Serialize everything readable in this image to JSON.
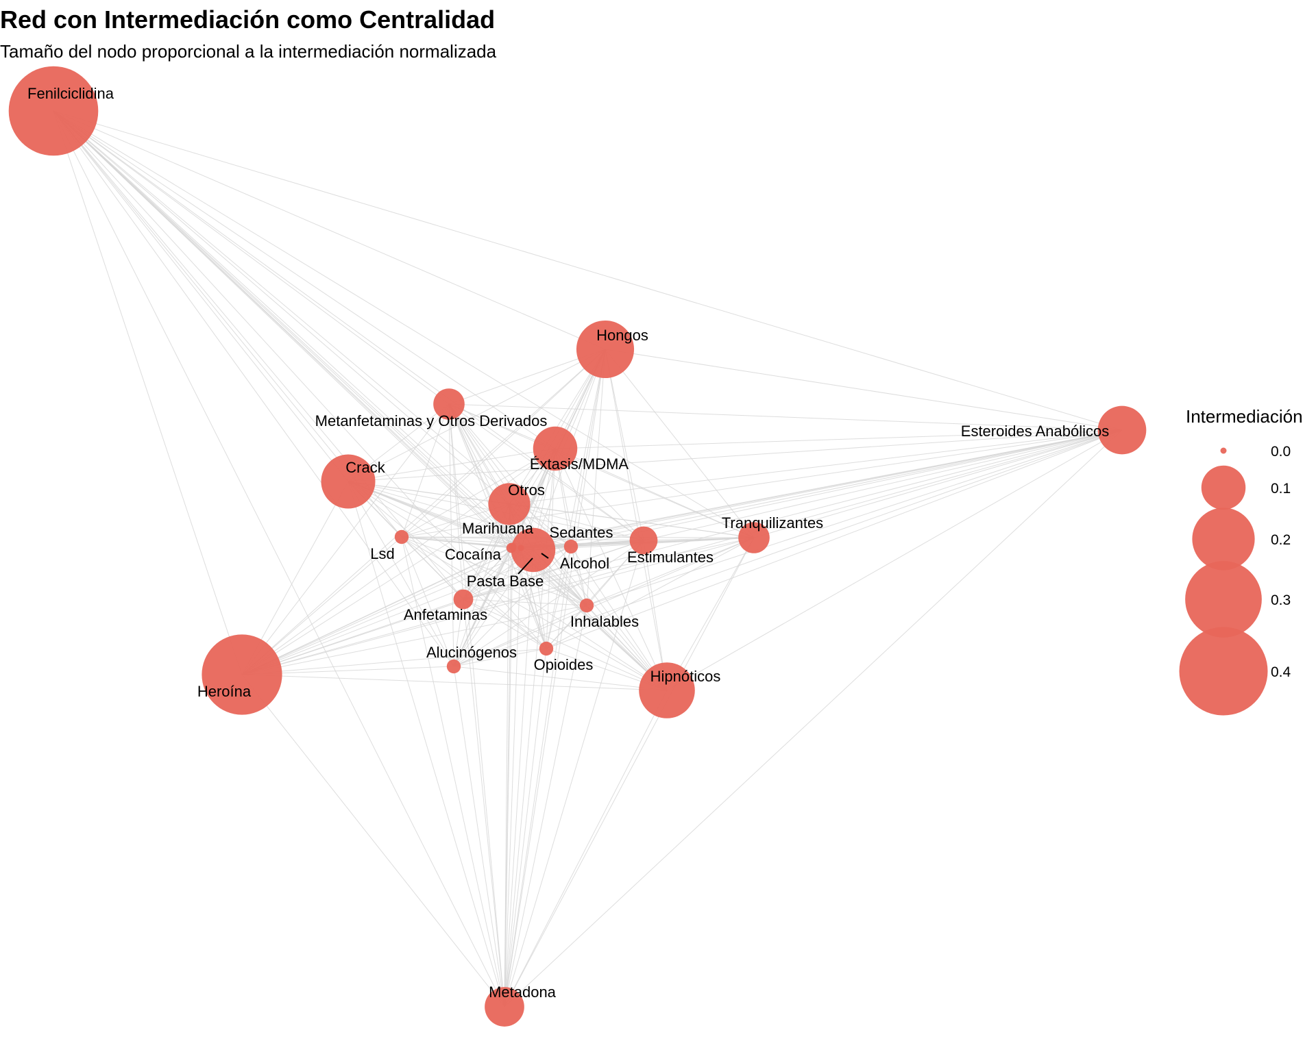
{
  "title": "Red con Intermediación como Centralidad",
  "subtitle": "Tamaño del nodo proporcional a la intermediación normalizada",
  "legend": {
    "title": "Intermediación",
    "entries": [
      {
        "label": "0.0",
        "value": 0.0
      },
      {
        "label": "0.1",
        "value": 0.1
      },
      {
        "label": "0.2",
        "value": 0.2
      },
      {
        "label": "0.3",
        "value": 0.3
      },
      {
        "label": "0.4",
        "value": 0.4
      }
    ]
  },
  "colors": {
    "node": "#e8665a",
    "edge": "#d4d4d4"
  },
  "nodes": [
    {
      "id": "Fenilciclidina",
      "label": "Fenilciclidina",
      "betweenness": 0.41
    },
    {
      "id": "Hongos",
      "label": "Hongos",
      "betweenness": 0.17
    },
    {
      "id": "Metanfetaminas",
      "label": "Metanfetaminas y Otros Derivados",
      "betweenness": 0.05
    },
    {
      "id": "Esteroides",
      "label": "Esteroides Anabólicos",
      "betweenness": 0.12
    },
    {
      "id": "Extasis",
      "label": "Éxtasis/MDMA",
      "betweenness": 0.1
    },
    {
      "id": "Crack",
      "label": "Crack",
      "betweenness": 0.15
    },
    {
      "id": "Otros",
      "label": "Otros",
      "betweenness": 0.09
    },
    {
      "id": "Marihuana",
      "label": "Marihuana",
      "betweenness": 0.003
    },
    {
      "id": "Sedantes",
      "label": "Sedantes",
      "betweenness": 0.01
    },
    {
      "id": "Tranquilizantes",
      "label": "Tranquilizantes",
      "betweenness": 0.05
    },
    {
      "id": "Lsd",
      "label": "Lsd",
      "betweenness": 0.01
    },
    {
      "id": "Cocaina",
      "label": "Cocaína",
      "betweenness": 0.005
    },
    {
      "id": "Alcohol",
      "label": "Alcohol",
      "betweenness": 0.1
    },
    {
      "id": "Estimulantes",
      "label": "Estimulantes",
      "betweenness": 0.04
    },
    {
      "id": "PastaBase",
      "label": "Pasta Base",
      "betweenness": 0.002
    },
    {
      "id": "Anfetaminas",
      "label": "Anfetaminas",
      "betweenness": 0.02
    },
    {
      "id": "Inhalables",
      "label": "Inhalables",
      "betweenness": 0.01
    },
    {
      "id": "Alucinogenos",
      "label": "Alucinógenos",
      "betweenness": 0.01
    },
    {
      "id": "Opioides",
      "label": "Opioides",
      "betweenness": 0.01
    },
    {
      "id": "Heroina",
      "label": "Heroína",
      "betweenness": 0.33
    },
    {
      "id": "Hipnoticos",
      "label": "Hipnóticos",
      "betweenness": 0.16
    },
    {
      "id": "Metadona",
      "label": "Metadona",
      "betweenness": 0.08
    }
  ]
}
